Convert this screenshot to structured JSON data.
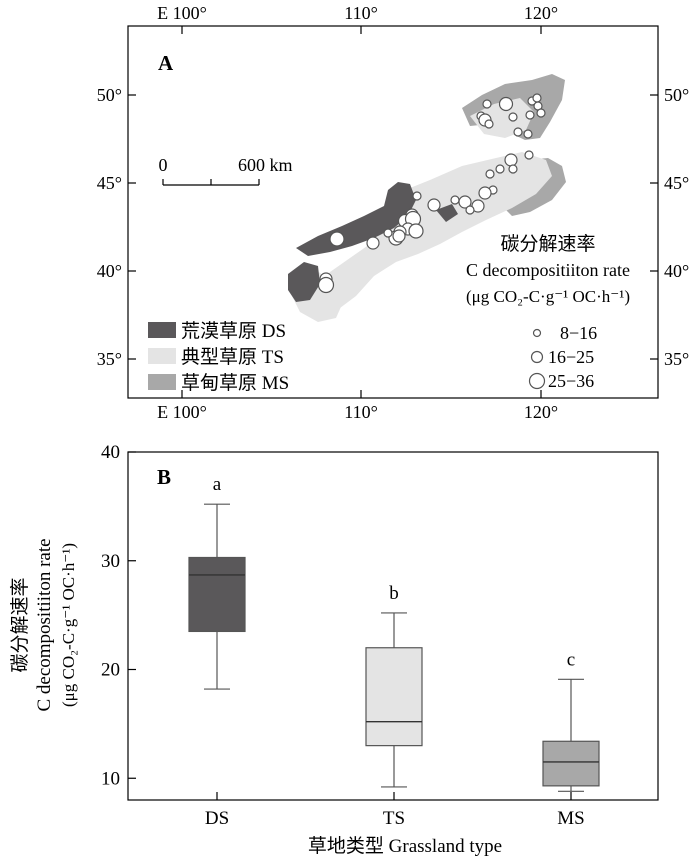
{
  "panelA": {
    "label": "A",
    "lon_ticks_top": [
      "E 100°",
      "110°",
      "120°"
    ],
    "lon_ticks_bottom": [
      "E 100°",
      "110°",
      "120°"
    ],
    "lat_ticks_left": [
      "50°",
      "45°",
      "40°",
      "35°"
    ],
    "lat_ticks_right": [
      "50°",
      "45°",
      "40°",
      "35°"
    ],
    "scalebar": {
      "start": "0",
      "end": "600 km"
    },
    "legend_types": [
      {
        "label": "荒漠草原 DS",
        "color": "#5a585a"
      },
      {
        "label": "典型草原 TS",
        "color": "#e4e4e4"
      },
      {
        "label": "草甸草原 MS",
        "color": "#a8a8a8"
      }
    ],
    "rate_legend": {
      "title_cn": "碳分解速率",
      "title_en": "C decompositiiton rate",
      "unit": "(μg CO₂-C·g⁻¹ OC·h⁻¹)",
      "classes": [
        "8−16",
        "16−25",
        "25−36"
      ]
    }
  },
  "panelB": {
    "label": "B",
    "ylabel_cn": "碳分解速率",
    "ylabel_en": "C decompositiiton rate",
    "ylabel_unit": "(μg CO₂-C·g⁻¹ OC·h⁻¹)",
    "xlabel": "草地类型 Grassland type"
  },
  "chart_data": {
    "type": "boxplot",
    "ylim": [
      8,
      40
    ],
    "yticks": [
      10,
      20,
      30,
      40
    ],
    "categories": [
      "DS",
      "TS",
      "MS"
    ],
    "colors": [
      "#5a585a",
      "#e4e4e4",
      "#a8a8a8"
    ],
    "boxes": [
      {
        "category": "DS",
        "min": 18.2,
        "q1": 23.5,
        "median": 28.7,
        "q3": 30.3,
        "max": 35.2,
        "letter": "a"
      },
      {
        "category": "TS",
        "min": 9.2,
        "q1": 13.0,
        "median": 15.2,
        "q3": 22.0,
        "max": 25.2,
        "letter": "b"
      },
      {
        "category": "MS",
        "min": 8.8,
        "q1": 9.3,
        "median": 11.5,
        "q3": 13.4,
        "max": 19.1,
        "letter": "c"
      }
    ]
  }
}
